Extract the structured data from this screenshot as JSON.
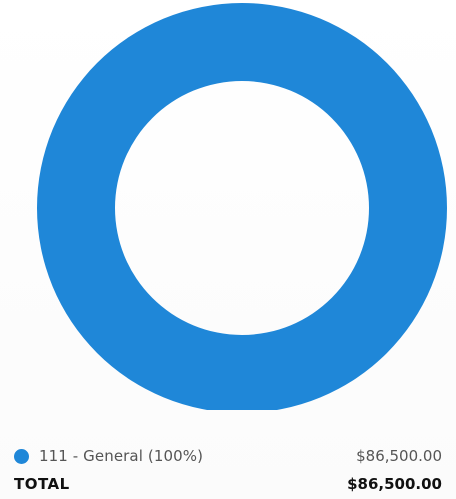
{
  "chart_data": {
    "type": "pie",
    "variant": "donut",
    "series": [
      {
        "name": "111 - General (100%)",
        "value": 86500,
        "percent": 100,
        "color": "#1f87d8"
      }
    ]
  },
  "legend": {
    "items": [
      {
        "label": "111 - General (100%)",
        "value": "$86,500.00"
      }
    ]
  },
  "total": {
    "label": "TOTAL",
    "value": "$86,500.00"
  },
  "colors": {
    "slice": "#1f87d8",
    "background": "#ffffff"
  }
}
